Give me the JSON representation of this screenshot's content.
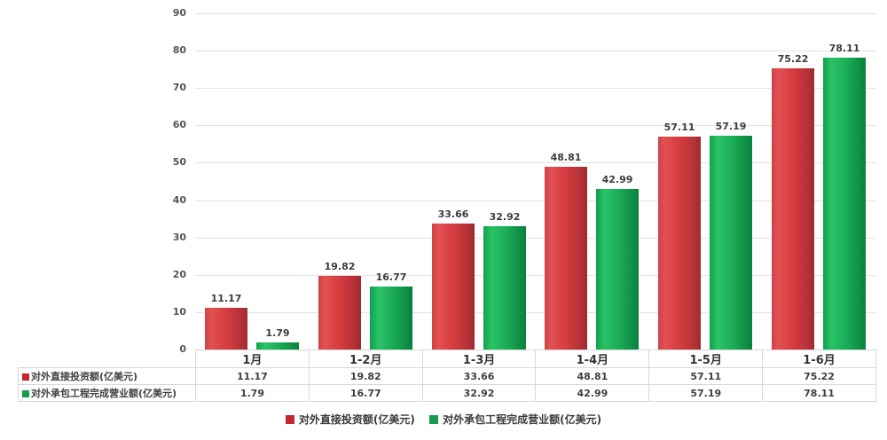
{
  "chart_data": {
    "type": "bar",
    "categories": [
      "1月",
      "1-2月",
      "1-3月",
      "1-4月",
      "1-5月",
      "1-6月"
    ],
    "series": [
      {
        "name": "对外直接投资额(亿美元)",
        "color": "#c1272d",
        "values": [
          11.17,
          19.82,
          33.66,
          48.81,
          57.11,
          75.22
        ]
      },
      {
        "name": "对外承包工程完成营业额(亿美元)",
        "color": "#169b4f",
        "values": [
          1.79,
          16.77,
          32.92,
          42.99,
          57.19,
          78.11
        ]
      }
    ],
    "title": "",
    "xlabel": "",
    "ylabel": "",
    "ylim": [
      0,
      90
    ],
    "ytick_step": 10,
    "ytick_labels": [
      "0",
      "10",
      "20",
      "30",
      "40",
      "50",
      "60",
      "70",
      "80",
      "90"
    ],
    "grid": "horizontal",
    "legend_position": "bottom",
    "value_labels_shown": true,
    "data_table_shown": true
  },
  "legend": {
    "items": [
      {
        "label": "对外直接投资额(亿美元)",
        "color": "#c1272d"
      },
      {
        "label": "对外承包工程完成营业额(亿美元)",
        "color": "#169b4f"
      }
    ]
  },
  "colors": {
    "bar_red_main": "#d63c40",
    "bar_green_main": "#1bab57",
    "gridline": "#e2e2e2",
    "table_border": "#d8d8d8",
    "text": "#404040"
  }
}
